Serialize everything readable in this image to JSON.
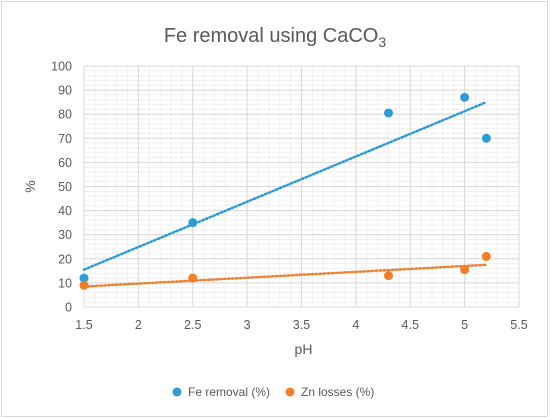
{
  "chart_data": {
    "type": "scatter",
    "title_main": "Fe removal using CaCO",
    "title_subscript": "3",
    "xlabel": "pH",
    "ylabel": "%",
    "xlim": [
      1.5,
      5.5
    ],
    "ylim": [
      0,
      100
    ],
    "x_ticks": [
      1.5,
      2,
      2.5,
      3,
      3.5,
      4,
      4.5,
      5,
      5.5
    ],
    "y_ticks": [
      0,
      10,
      20,
      30,
      40,
      50,
      60,
      70,
      80,
      90,
      100
    ],
    "x_tick_labels": [
      "1.5",
      "2",
      "2.5",
      "3",
      "3.5",
      "4",
      "4.5",
      "5",
      "5.5"
    ],
    "y_tick_labels": [
      "0",
      "10",
      "20",
      "30",
      "40",
      "50",
      "60",
      "70",
      "80",
      "90",
      "100"
    ],
    "grid": true,
    "legend_position": "bottom",
    "series": [
      {
        "name": "Fe removal (%)",
        "color": "#2e9bd6",
        "x": [
          1.5,
          2.5,
          4.3,
          5.0,
          5.2
        ],
        "y": [
          12,
          35,
          80.5,
          87,
          70
        ],
        "trendline": {
          "x": [
            1.5,
            5.2
          ],
          "y": [
            15.5,
            85
          ]
        }
      },
      {
        "name": "Zn losses (%)",
        "color": "#f07f28",
        "x": [
          1.5,
          2.5,
          4.3,
          5.0,
          5.2
        ],
        "y": [
          9,
          12,
          13,
          15.5,
          21
        ],
        "trendline": {
          "x": [
            1.5,
            5.2
          ],
          "y": [
            8.5,
            17.5
          ]
        }
      }
    ]
  }
}
